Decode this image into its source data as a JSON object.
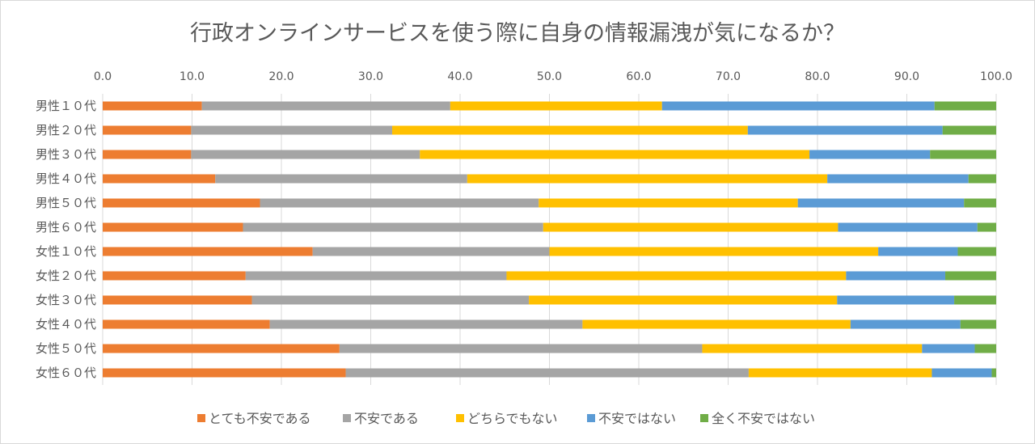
{
  "chart_data": {
    "type": "bar",
    "orientation": "horizontal",
    "stacked": true,
    "title": "行政オンラインサービスを使う際に自身の情報漏洩が気になるか？",
    "xlim": [
      0,
      100
    ],
    "x_ticks": [
      "0.0",
      "10.0",
      "20.0",
      "30.0",
      "40.0",
      "50.0",
      "60.0",
      "70.0",
      "80.0",
      "90.0",
      "100.0"
    ],
    "grid": true,
    "legend_position": "bottom",
    "categories": [
      "男性１０代",
      "男性２０代",
      "男性３０代",
      "男性４０代",
      "男性５０代",
      "男性６０代",
      "女性１０代",
      "女性２０代",
      "女性３０代",
      "女性４０代",
      "女性５０代",
      "女性６０代"
    ],
    "series": [
      {
        "name": "とても不安である",
        "color": "#ED7D31",
        "values": [
          11.1,
          9.9,
          9.9,
          12.6,
          17.6,
          15.7,
          23.5,
          16.0,
          16.7,
          18.7,
          26.5,
          27.2
        ]
      },
      {
        "name": "不安である",
        "color": "#A5A5A5",
        "values": [
          27.8,
          22.5,
          25.6,
          28.2,
          31.2,
          33.6,
          26.5,
          29.2,
          31.0,
          35.0,
          40.6,
          45.1
        ]
      },
      {
        "name": "どちらでもない",
        "color": "#FFC000",
        "values": [
          23.7,
          39.8,
          43.6,
          40.3,
          29.0,
          33.0,
          36.8,
          38.0,
          34.5,
          30.0,
          24.6,
          20.5
        ]
      },
      {
        "name": "不安ではない",
        "color": "#5B9BD5",
        "values": [
          30.5,
          21.8,
          13.5,
          15.8,
          18.6,
          15.6,
          8.9,
          11.1,
          13.1,
          12.3,
          5.9,
          6.7
        ]
      },
      {
        "name": "全く不安ではない",
        "color": "#70AD47",
        "values": [
          6.9,
          6.0,
          7.4,
          3.1,
          3.6,
          2.1,
          4.3,
          5.7,
          4.7,
          4.0,
          2.4,
          0.5
        ]
      }
    ]
  }
}
